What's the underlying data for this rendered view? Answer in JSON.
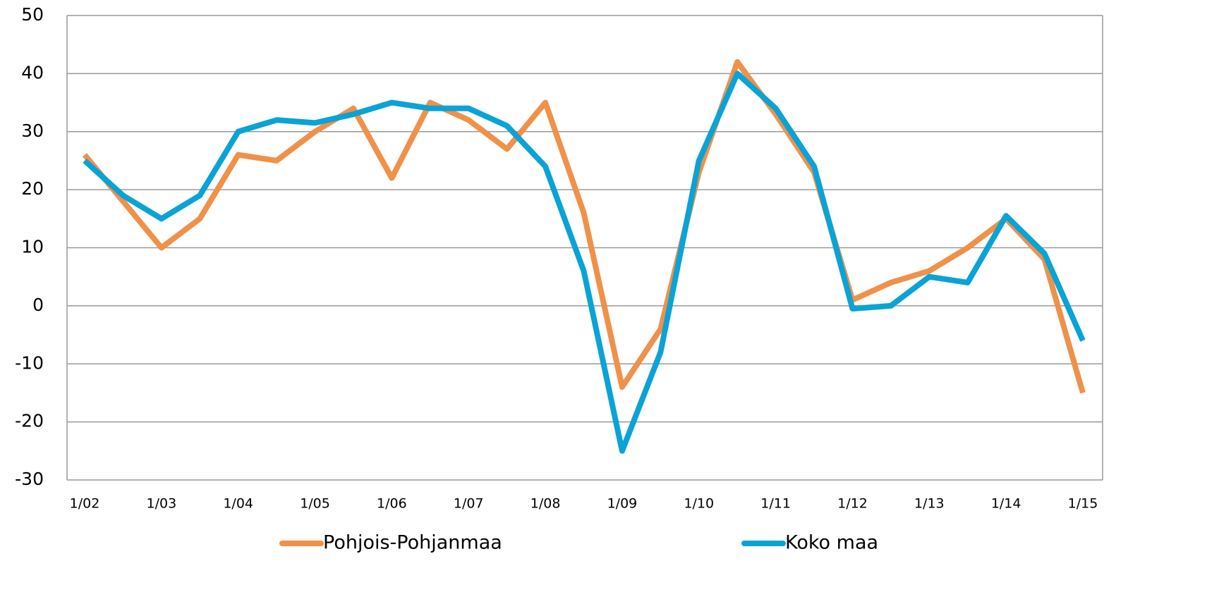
{
  "chart_data": {
    "type": "line",
    "categories": [
      "1/02",
      null,
      "1/03",
      null,
      "1/04",
      null,
      "1/05",
      null,
      "1/06",
      null,
      "1/07",
      null,
      "1/08",
      null,
      "1/09",
      null,
      "1/10",
      null,
      "1/11",
      null,
      "1/12",
      null,
      "1/13",
      null,
      "1/14",
      null,
      "1/15"
    ],
    "series": [
      {
        "name": "Pohjois-Pohjanmaa",
        "color": "#f0914a",
        "values": [
          26,
          18,
          10,
          15,
          26,
          25,
          30,
          34,
          22,
          35,
          32,
          27,
          35,
          16,
          -14,
          -4,
          23,
          42,
          33,
          23,
          1,
          4,
          6,
          10,
          15,
          8,
          -15
        ]
      },
      {
        "name": "Koko maa",
        "color": "#0aa3d6",
        "values": [
          25,
          19,
          15,
          19,
          30,
          32,
          31.5,
          33,
          35,
          34,
          34,
          31,
          24,
          6,
          -25,
          -8,
          25,
          40,
          34,
          24,
          -0.5,
          0,
          5,
          4,
          15.5,
          9,
          -6
        ]
      }
    ],
    "ylim": [
      -30,
      50
    ],
    "yticks": [
      -30,
      -20,
      -10,
      0,
      10,
      20,
      30,
      40,
      50
    ],
    "grid": true,
    "legend": "bottom"
  }
}
